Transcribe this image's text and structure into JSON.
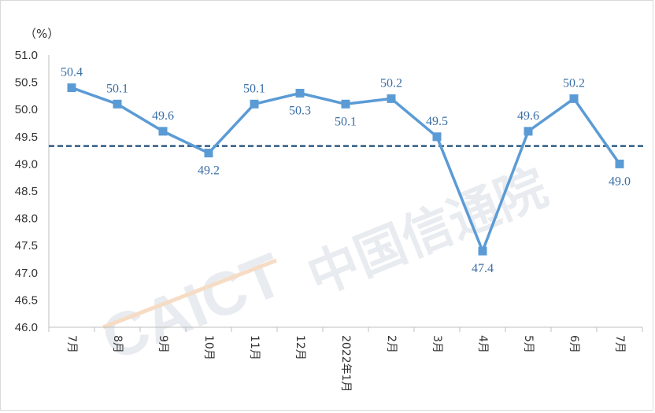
{
  "chart_data": {
    "type": "line",
    "unit_label": "（%）",
    "categories": [
      "7月",
      "8月",
      "9月",
      "10月",
      "11月",
      "12月",
      "2022年1月",
      "2月",
      "3月",
      "4月",
      "5月",
      "6月",
      "7月"
    ],
    "values": [
      50.4,
      50.1,
      49.6,
      49.2,
      50.1,
      50.3,
      50.1,
      50.2,
      49.5,
      47.4,
      49.6,
      50.2,
      49.0
    ],
    "value_labels": [
      "50.4",
      "50.1",
      "49.6",
      "49.2",
      "50.1",
      "50.3",
      "50.1",
      "50.2",
      "49.5",
      "47.4",
      "49.6",
      "50.2",
      "49.0"
    ],
    "y_ticks": [
      "46.0",
      "46.5",
      "47.0",
      "47.5",
      "48.0",
      "48.5",
      "49.0",
      "49.5",
      "50.0",
      "50.5",
      "51.0"
    ],
    "ylim": [
      46.0,
      51.0
    ],
    "reference_line": 49.33,
    "grid": false,
    "legend": "none",
    "series_color": "#5b9bd5",
    "reference_color": "#2e5b82",
    "label_color": "#3a6fa6"
  },
  "watermark": {
    "text": "CAICT 中国信通院"
  }
}
